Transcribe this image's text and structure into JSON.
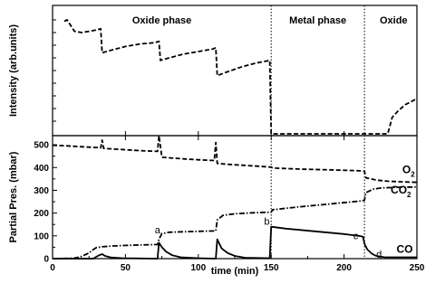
{
  "chart_data": {
    "type": "line",
    "xlabel": "time (min)",
    "x_ticks": [
      0,
      50,
      100,
      150,
      200,
      250
    ],
    "xlim": [
      0,
      250
    ],
    "phase_boundaries": [
      150,
      214
    ],
    "phases": [
      {
        "label": "Oxide phase",
        "x_center": 75
      },
      {
        "label": "Metal phase",
        "x_center": 182
      },
      {
        "label": "Oxide",
        "x_center": 234
      }
    ],
    "panels": [
      {
        "id": "intensity",
        "ylabel": "Intensity (arb.units)",
        "ylim": [
          0,
          100
        ],
        "y_tick_labels": false,
        "series": [
          {
            "style": "dashed",
            "values": [
              [
                8,
                89
              ],
              [
                10,
                90
              ],
              [
                15,
                81
              ],
              [
                20,
                80
              ],
              [
                25,
                81
              ],
              [
                30,
                82
              ],
              [
                33,
                83
              ],
              [
                34,
                64
              ],
              [
                40,
                66
              ],
              [
                50,
                69
              ],
              [
                60,
                71
              ],
              [
                70,
                72
              ],
              [
                73,
                73
              ],
              [
                74,
                58
              ],
              [
                80,
                60
              ],
              [
                90,
                63
              ],
              [
                100,
                65
              ],
              [
                110,
                67
              ],
              [
                112,
                68
              ],
              [
                113,
                46
              ],
              [
                120,
                49
              ],
              [
                130,
                53
              ],
              [
                140,
                56
              ],
              [
                149,
                58
              ],
              [
                150,
                0
              ],
              [
                214,
                0
              ],
              [
                230,
                0
              ],
              [
                233,
                13
              ],
              [
                237,
                18
              ],
              [
                242,
                23
              ],
              [
                247,
                26
              ],
              [
                250,
                28
              ]
            ]
          }
        ]
      },
      {
        "id": "partial-pressure",
        "ylabel": "Partial Pres. (mbar)",
        "ylim": [
          0,
          540
        ],
        "y_ticks": [
          0,
          100,
          200,
          300,
          400,
          500
        ],
        "series": [
          {
            "name": "O2",
            "style": "dashed",
            "values": [
              [
                0,
                498
              ],
              [
                10,
                495
              ],
              [
                20,
                491
              ],
              [
                30,
                488
              ],
              [
                33,
                486
              ],
              [
                34,
                520
              ],
              [
                35,
                484
              ],
              [
                50,
                478
              ],
              [
                60,
                474
              ],
              [
                72,
                471
              ],
              [
                73,
                540
              ],
              [
                75,
                445
              ],
              [
                90,
                438
              ],
              [
                100,
                434
              ],
              [
                111,
                431
              ],
              [
                112,
                510
              ],
              [
                113,
                418
              ],
              [
                120,
                414
              ],
              [
                130,
                410
              ],
              [
                140,
                406
              ],
              [
                150,
                402
              ],
              [
                151,
                398
              ],
              [
                170,
                393
              ],
              [
                190,
                390
              ],
              [
                210,
                386
              ],
              [
                214,
                384
              ],
              [
                215,
                355
              ],
              [
                222,
                345
              ],
              [
                230,
                340
              ],
              [
                240,
                337
              ],
              [
                250,
                335
              ]
            ]
          },
          {
            "name": "CO2",
            "style": "dash-dot",
            "values": [
              [
                0,
                0
              ],
              [
                15,
                2
              ],
              [
                20,
                10
              ],
              [
                25,
                25
              ],
              [
                28,
                40
              ],
              [
                30,
                48
              ],
              [
                34,
                52
              ],
              [
                40,
                55
              ],
              [
                50,
                58
              ],
              [
                60,
                60
              ],
              [
                72,
                62
              ],
              [
                73,
                85
              ],
              [
                75,
                110
              ],
              [
                80,
                116
              ],
              [
                100,
                120
              ],
              [
                112,
                122
              ],
              [
                113,
                170
              ],
              [
                117,
                190
              ],
              [
                125,
                197
              ],
              [
                140,
                202
              ],
              [
                150,
                204
              ],
              [
                151,
                215
              ],
              [
                170,
                228
              ],
              [
                190,
                240
              ],
              [
                210,
                252
              ],
              [
                214,
                256
              ],
              [
                215,
                290
              ],
              [
                220,
                305
              ],
              [
                225,
                310
              ],
              [
                235,
                313
              ],
              [
                250,
                315
              ]
            ]
          },
          {
            "name": "CO",
            "style": "solid",
            "values": [
              [
                0,
                0
              ],
              [
                28,
                0
              ],
              [
                30,
                8
              ],
              [
                32,
                15
              ],
              [
                34,
                20
              ],
              [
                36,
                12
              ],
              [
                40,
                5
              ],
              [
                48,
                2
              ],
              [
                72,
                0
              ],
              [
                73,
                70
              ],
              [
                75,
                50
              ],
              [
                78,
                30
              ],
              [
                82,
                15
              ],
              [
                88,
                6
              ],
              [
                100,
                2
              ],
              [
                112,
                0
              ],
              [
                113,
                85
              ],
              [
                116,
                45
              ],
              [
                120,
                25
              ],
              [
                125,
                12
              ],
              [
                132,
                4
              ],
              [
                149,
                2
              ],
              [
                150,
                140
              ],
              [
                160,
                132
              ],
              [
                180,
                120
              ],
              [
                200,
                108
              ],
              [
                210,
                100
              ],
              [
                213,
                96
              ],
              [
                214,
                65
              ],
              [
                216,
                40
              ],
              [
                219,
                22
              ],
              [
                222,
                12
              ],
              [
                228,
                6
              ],
              [
                250,
                6
              ]
            ]
          }
        ]
      }
    ],
    "annotations": [
      {
        "text": "a",
        "x": 72,
        "y": 112
      },
      {
        "text": "b",
        "x": 147,
        "y": 148
      },
      {
        "text": "c",
        "x": 208,
        "y": 85
      },
      {
        "text": "d",
        "x": 224,
        "y": 4
      }
    ],
    "series_labels": [
      {
        "series": "O2",
        "text": "O",
        "sub": "2",
        "x": 240,
        "y": 375
      },
      {
        "series": "CO2",
        "text": "CO",
        "sub": "2",
        "x": 232,
        "y": 285
      },
      {
        "series": "CO",
        "text": "CO",
        "sub": "",
        "x": 236,
        "y": 25
      }
    ]
  }
}
